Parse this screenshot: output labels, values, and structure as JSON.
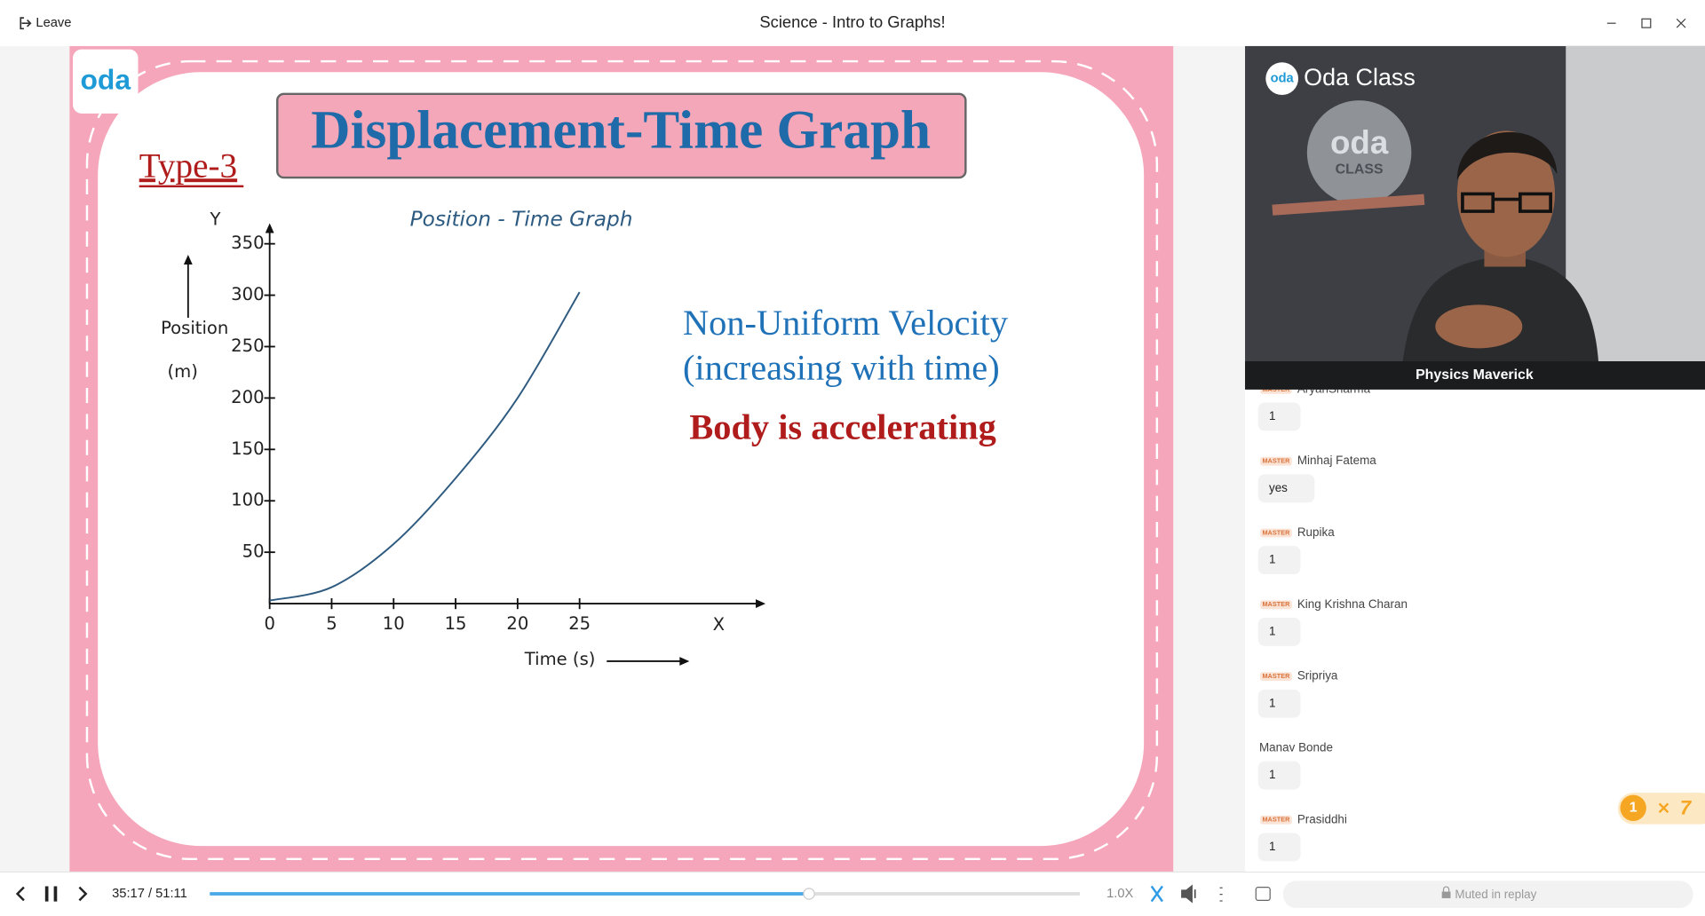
{
  "header": {
    "leave": "Leave",
    "title": "Science - Intro to Graphs!"
  },
  "slide": {
    "logo": "oda",
    "title": "Displacement-Time Graph",
    "type_label": "Type-3",
    "notes": [
      "Non-Uniform Velocity",
      "(increasing with time)"
    ],
    "conclusion": "Body is accelerating",
    "chart": {
      "type": "line",
      "title": "Position - Time Graph",
      "x_label": "Time (s)",
      "y_label": [
        "Position",
        "(m)"
      ],
      "x_axis_name": "X",
      "y_axis_name": "Y",
      "x": [
        0,
        5,
        10,
        15,
        20,
        25
      ],
      "values": [
        3,
        16,
        58,
        122,
        200,
        303
      ],
      "color": "#2f5b80",
      "xlim": [
        0,
        40
      ],
      "ylim": [
        0,
        370
      ],
      "xticks": [
        0,
        5,
        10,
        15,
        20,
        25
      ],
      "yticks": [
        50,
        100,
        150,
        200,
        250,
        300,
        350
      ]
    }
  },
  "video": {
    "logo": "oda",
    "brand": "Oda Class",
    "wall_logo": "oda",
    "wall_sub": "CLASS",
    "name": "Physics Maverick"
  },
  "chat": {
    "messages": [
      {
        "badge": "MASTER",
        "name": "AryanSharma",
        "text": "1"
      },
      {
        "badge": "MASTER",
        "name": "Minhaj Fatema",
        "text": "yes"
      },
      {
        "badge": "MASTER",
        "name": "Rupika",
        "text": "1"
      },
      {
        "badge": "MASTER",
        "name": "King Krishna Charan",
        "text": "1"
      },
      {
        "badge": "MASTER",
        "name": "Sripriya",
        "text": "1"
      },
      {
        "name": "Manav Bonde",
        "text": "1"
      },
      {
        "badge": "MASTER",
        "name": "Prasiddhi",
        "text": "1"
      }
    ]
  },
  "reaction": {
    "count": "1",
    "streak": "7"
  },
  "player": {
    "time": "35:17 / 51:11",
    "speed": "1.0X",
    "input_placeholder": "Muted in replay"
  }
}
